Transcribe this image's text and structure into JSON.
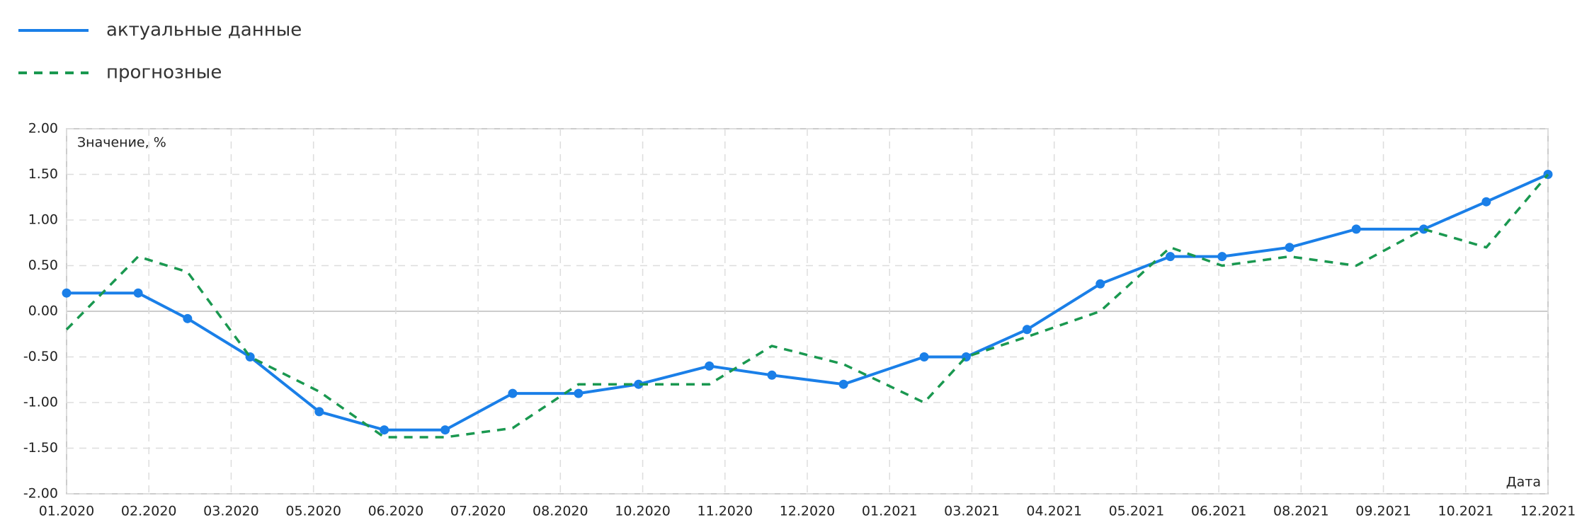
{
  "chart_data": {
    "type": "line",
    "x": [
      0,
      0.87,
      1.47,
      2.23,
      3.07,
      3.86,
      4.6,
      5.42,
      6.22,
      6.95,
      7.81,
      8.57,
      9.44,
      10.42,
      10.93,
      11.67,
      12.56,
      13.41,
      14.04,
      14.86,
      15.67,
      16.49,
      17.25,
      18
    ],
    "series": [
      {
        "name": "актуальные данные",
        "color": "#1a7fe8",
        "style": "solid",
        "markers": true,
        "values": [
          0.2,
          0.2,
          -0.08,
          -0.5,
          -1.1,
          -1.3,
          -1.3,
          -0.9,
          -0.9,
          -0.8,
          -0.6,
          -0.7,
          -0.8,
          -0.5,
          -0.5,
          -0.2,
          0.3,
          0.6,
          0.6,
          0.7,
          0.9,
          0.9,
          1.2,
          1.5
        ]
      },
      {
        "name": "прогнозные",
        "color": "#1a9850",
        "style": "dashed",
        "markers": false,
        "values": [
          -0.2,
          0.6,
          0.43,
          -0.5,
          -0.88,
          -1.38,
          -1.38,
          -1.28,
          -0.8,
          -0.8,
          -0.8,
          -0.38,
          -0.58,
          -1.0,
          -0.5,
          -0.28,
          0.0,
          0.7,
          0.5,
          0.6,
          0.5,
          0.9,
          0.7,
          1.5
        ]
      }
    ],
    "y_label": "Значение, %",
    "x_label": "Дата",
    "xlim": [
      0,
      18
    ],
    "xticks": [
      {
        "value": 0,
        "label": "01.2020"
      },
      {
        "value": 1,
        "label": "02.2020"
      },
      {
        "value": 2,
        "label": "03.2020"
      },
      {
        "value": 3,
        "label": "05.2020"
      },
      {
        "value": 4,
        "label": "06.2020"
      },
      {
        "value": 5,
        "label": "07.2020"
      },
      {
        "value": 6,
        "label": "08.2020"
      },
      {
        "value": 7,
        "label": "10.2020"
      },
      {
        "value": 8,
        "label": "11.2020"
      },
      {
        "value": 9,
        "label": "12.2020"
      },
      {
        "value": 10,
        "label": "01.2021"
      },
      {
        "value": 11,
        "label": "03.2021"
      },
      {
        "value": 12,
        "label": "04.2021"
      },
      {
        "value": 13,
        "label": "05.2021"
      },
      {
        "value": 14,
        "label": "06.2021"
      },
      {
        "value": 15,
        "label": "08.2021"
      },
      {
        "value": 16,
        "label": "09.2021"
      },
      {
        "value": 17,
        "label": "10.2021"
      },
      {
        "value": 18,
        "label": "12.2021"
      }
    ],
    "ylim": [
      -2,
      2
    ],
    "yticks": [
      {
        "value": -2,
        "label": "-2.00"
      },
      {
        "value": -1.5,
        "label": "-1.50"
      },
      {
        "value": -1,
        "label": "-1.00"
      },
      {
        "value": -0.5,
        "label": "-0.50"
      },
      {
        "value": 0,
        "label": "0.00"
      },
      {
        "value": 0.5,
        "label": "0.50"
      },
      {
        "value": 1,
        "label": "1.00"
      },
      {
        "value": 1.5,
        "label": "1.50"
      },
      {
        "value": 2,
        "label": "2.00"
      }
    ],
    "grid": true
  }
}
